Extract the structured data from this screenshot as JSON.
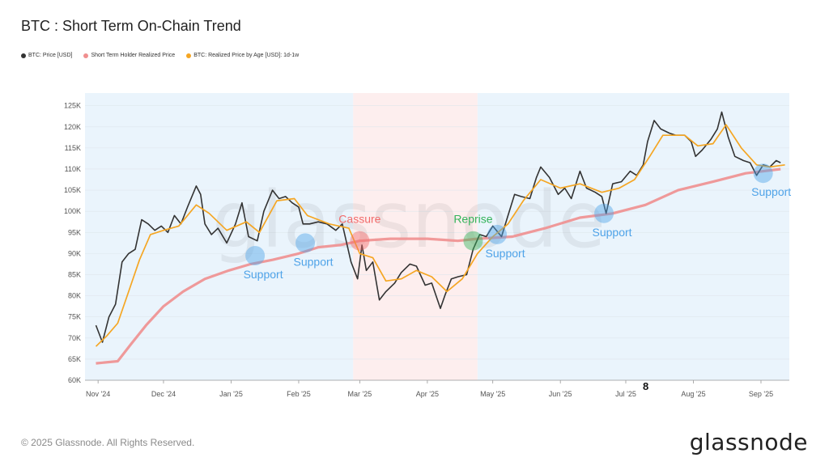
{
  "title": "BTC : Short Term On-Chain Trend",
  "legend": [
    {
      "label": "BTC: Price [USD]",
      "color": "#333333"
    },
    {
      "label": "Short Term Holder Realized Price",
      "color": "#f08f8f"
    },
    {
      "label": "BTC: Realized Price by Age [USD]: 1d-1w",
      "color": "#f5a623"
    }
  ],
  "footer": "© 2025 Glassnode. All Rights Reserved.",
  "brand": "glassnode",
  "watermark": "glassnode",
  "stray_label": "8",
  "chart_data": {
    "type": "line",
    "title": "BTC : Short Term On-Chain Trend",
    "xlim": [
      "2024-10-26",
      "2025-09-14"
    ],
    "ylim": [
      60000,
      128000
    ],
    "x_ticks": [
      {
        "date": "2024-11-01",
        "label": "Nov '24"
      },
      {
        "date": "2024-12-01",
        "label": "Dec '24"
      },
      {
        "date": "2025-01-01",
        "label": "Jan '25"
      },
      {
        "date": "2025-02-01",
        "label": "Feb '25"
      },
      {
        "date": "2025-03-01",
        "label": "Mar '25"
      },
      {
        "date": "2025-04-01",
        "label": "Apr '25"
      },
      {
        "date": "2025-05-01",
        "label": "May '25"
      },
      {
        "date": "2025-06-01",
        "label": "Jun '25"
      },
      {
        "date": "2025-07-01",
        "label": "Jul '25"
      },
      {
        "date": "2025-08-01",
        "label": "Aug '25"
      },
      {
        "date": "2025-09-01",
        "label": "Sep '25"
      }
    ],
    "y_ticks": [
      {
        "value": 60000,
        "label": "60K"
      },
      {
        "value": 65000,
        "label": "65K"
      },
      {
        "value": 70000,
        "label": "70K"
      },
      {
        "value": 75000,
        "label": "75K"
      },
      {
        "value": 80000,
        "label": "80K"
      },
      {
        "value": 85000,
        "label": "85K"
      },
      {
        "value": 90000,
        "label": "90K"
      },
      {
        "value": 95000,
        "label": "95K"
      },
      {
        "value": 100000,
        "label": "100K"
      },
      {
        "value": 105000,
        "label": "105K"
      },
      {
        "value": 110000,
        "label": "110K"
      },
      {
        "value": 115000,
        "label": "115K"
      },
      {
        "value": 120000,
        "label": "120K"
      },
      {
        "value": 125000,
        "label": "125K"
      }
    ],
    "regions": [
      {
        "start": "2024-10-26",
        "end": "2025-02-26",
        "color": "#eaf4fc"
      },
      {
        "start": "2025-02-26",
        "end": "2025-04-24",
        "color": "#fdeeee"
      },
      {
        "start": "2025-04-24",
        "end": "2025-09-14",
        "color": "#eaf4fc"
      }
    ],
    "series": [
      {
        "name": "BTC: Price [USD]",
        "color": "#333333",
        "points": [
          [
            "2024-10-31",
            73000
          ],
          [
            "2024-11-03",
            69000
          ],
          [
            "2024-11-06",
            75000
          ],
          [
            "2024-11-09",
            78000
          ],
          [
            "2024-11-12",
            88000
          ],
          [
            "2024-11-15",
            90000
          ],
          [
            "2024-11-18",
            91000
          ],
          [
            "2024-11-21",
            98000
          ],
          [
            "2024-11-24",
            97000
          ],
          [
            "2024-11-27",
            95500
          ],
          [
            "2024-11-30",
            96500
          ],
          [
            "2024-12-03",
            95000
          ],
          [
            "2024-12-06",
            99000
          ],
          [
            "2024-12-09",
            97000
          ],
          [
            "2024-12-12",
            101000
          ],
          [
            "2024-12-16",
            106000
          ],
          [
            "2024-12-18",
            104000
          ],
          [
            "2024-12-20",
            97000
          ],
          [
            "2024-12-23",
            94500
          ],
          [
            "2024-12-26",
            96000
          ],
          [
            "2024-12-30",
            92500
          ],
          [
            "2025-01-03",
            97000
          ],
          [
            "2025-01-06",
            102000
          ],
          [
            "2025-01-09",
            94000
          ],
          [
            "2025-01-13",
            93000
          ],
          [
            "2025-01-16",
            100000
          ],
          [
            "2025-01-20",
            105000
          ],
          [
            "2025-01-23",
            103000
          ],
          [
            "2025-01-26",
            103500
          ],
          [
            "2025-01-29",
            102000
          ],
          [
            "2025-02-01",
            101000
          ],
          [
            "2025-02-03",
            97000
          ],
          [
            "2025-02-06",
            97000
          ],
          [
            "2025-02-10",
            97500
          ],
          [
            "2025-02-14",
            97000
          ],
          [
            "2025-02-18",
            95500
          ],
          [
            "2025-02-21",
            97000
          ],
          [
            "2025-02-25",
            88000
          ],
          [
            "2025-02-28",
            84000
          ],
          [
            "2025-03-02",
            92000
          ],
          [
            "2025-03-04",
            86000
          ],
          [
            "2025-03-07",
            88000
          ],
          [
            "2025-03-10",
            79000
          ],
          [
            "2025-03-13",
            81000
          ],
          [
            "2025-03-17",
            83000
          ],
          [
            "2025-03-20",
            85500
          ],
          [
            "2025-03-24",
            87500
          ],
          [
            "2025-03-27",
            87000
          ],
          [
            "2025-03-31",
            82500
          ],
          [
            "2025-04-03",
            83000
          ],
          [
            "2025-04-07",
            77000
          ],
          [
            "2025-04-09",
            80000
          ],
          [
            "2025-04-12",
            84000
          ],
          [
            "2025-04-15",
            84500
          ],
          [
            "2025-04-19",
            85000
          ],
          [
            "2025-04-22",
            91000
          ],
          [
            "2025-04-25",
            94500
          ],
          [
            "2025-04-28",
            94000
          ],
          [
            "2025-05-01",
            96500
          ],
          [
            "2025-05-05",
            94000
          ],
          [
            "2025-05-08",
            99000
          ],
          [
            "2025-05-11",
            104000
          ],
          [
            "2025-05-14",
            103500
          ],
          [
            "2025-05-18",
            103000
          ],
          [
            "2025-05-21",
            108000
          ],
          [
            "2025-05-23",
            110500
          ],
          [
            "2025-05-27",
            108000
          ],
          [
            "2025-05-31",
            104000
          ],
          [
            "2025-06-03",
            105500
          ],
          [
            "2025-06-06",
            103000
          ],
          [
            "2025-06-10",
            109500
          ],
          [
            "2025-06-13",
            105500
          ],
          [
            "2025-06-17",
            104500
          ],
          [
            "2025-06-20",
            103500
          ],
          [
            "2025-06-22",
            99500
          ],
          [
            "2025-06-25",
            106500
          ],
          [
            "2025-06-29",
            107000
          ],
          [
            "2025-07-03",
            109500
          ],
          [
            "2025-07-06",
            108500
          ],
          [
            "2025-07-09",
            111000
          ],
          [
            "2025-07-11",
            116500
          ],
          [
            "2025-07-14",
            121500
          ],
          [
            "2025-07-17",
            119500
          ],
          [
            "2025-07-21",
            118500
          ],
          [
            "2025-07-24",
            118000
          ],
          [
            "2025-07-28",
            118000
          ],
          [
            "2025-07-31",
            116500
          ],
          [
            "2025-08-02",
            113000
          ],
          [
            "2025-08-05",
            114500
          ],
          [
            "2025-08-09",
            117000
          ],
          [
            "2025-08-12",
            119500
          ],
          [
            "2025-08-14",
            123500
          ],
          [
            "2025-08-17",
            117500
          ],
          [
            "2025-08-20",
            113000
          ],
          [
            "2025-08-24",
            112000
          ],
          [
            "2025-08-27",
            111500
          ],
          [
            "2025-08-30",
            108500
          ],
          [
            "2025-09-02",
            111000
          ],
          [
            "2025-09-05",
            110500
          ],
          [
            "2025-09-08",
            112000
          ],
          [
            "2025-09-10",
            111500
          ]
        ]
      },
      {
        "name": "Short Term Holder Realized Price",
        "color": "#f08f8f",
        "points": [
          [
            "2024-10-31",
            64000
          ],
          [
            "2024-11-10",
            64500
          ],
          [
            "2024-11-16",
            68500
          ],
          [
            "2024-11-23",
            73000
          ],
          [
            "2024-12-01",
            77500
          ],
          [
            "2024-12-10",
            81000
          ],
          [
            "2024-12-20",
            84000
          ],
          [
            "2024-12-31",
            86000
          ],
          [
            "2025-01-10",
            87500
          ],
          [
            "2025-01-20",
            88500
          ],
          [
            "2025-02-01",
            90000
          ],
          [
            "2025-02-10",
            91500
          ],
          [
            "2025-02-20",
            92000
          ],
          [
            "2025-03-01",
            93000
          ],
          [
            "2025-03-15",
            93500
          ],
          [
            "2025-04-01",
            93500
          ],
          [
            "2025-04-15",
            93000
          ],
          [
            "2025-04-24",
            93500
          ],
          [
            "2025-05-10",
            94000
          ],
          [
            "2025-05-25",
            96000
          ],
          [
            "2025-06-10",
            98500
          ],
          [
            "2025-06-25",
            99500
          ],
          [
            "2025-07-10",
            101500
          ],
          [
            "2025-07-25",
            105000
          ],
          [
            "2025-08-10",
            107000
          ],
          [
            "2025-08-25",
            109000
          ],
          [
            "2025-09-10",
            110000
          ]
        ]
      },
      {
        "name": "BTC: Realized Price by Age [USD]: 1d-1w",
        "color": "#f5a623",
        "points": [
          [
            "2024-10-31",
            68000
          ],
          [
            "2024-11-05",
            70500
          ],
          [
            "2024-11-10",
            73500
          ],
          [
            "2024-11-15",
            81000
          ],
          [
            "2024-11-20",
            88500
          ],
          [
            "2024-11-25",
            94500
          ],
          [
            "2024-12-01",
            95500
          ],
          [
            "2024-12-08",
            96500
          ],
          [
            "2024-12-16",
            101500
          ],
          [
            "2024-12-22",
            99500
          ],
          [
            "2024-12-30",
            95500
          ],
          [
            "2025-01-08",
            97500
          ],
          [
            "2025-01-14",
            95000
          ],
          [
            "2025-01-22",
            102500
          ],
          [
            "2025-01-30",
            103000
          ],
          [
            "2025-02-05",
            99000
          ],
          [
            "2025-02-15",
            97000
          ],
          [
            "2025-02-24",
            96000
          ],
          [
            "2025-03-01",
            90000
          ],
          [
            "2025-03-07",
            89000
          ],
          [
            "2025-03-13",
            83500
          ],
          [
            "2025-03-20",
            84000
          ],
          [
            "2025-03-27",
            86000
          ],
          [
            "2025-04-03",
            84500
          ],
          [
            "2025-04-10",
            81000
          ],
          [
            "2025-04-17",
            84000
          ],
          [
            "2025-04-24",
            90000
          ],
          [
            "2025-05-01",
            94000
          ],
          [
            "2025-05-08",
            97000
          ],
          [
            "2025-05-15",
            102500
          ],
          [
            "2025-05-23",
            107500
          ],
          [
            "2025-06-01",
            105500
          ],
          [
            "2025-06-10",
            106500
          ],
          [
            "2025-06-20",
            104500
          ],
          [
            "2025-06-28",
            105500
          ],
          [
            "2025-07-05",
            107500
          ],
          [
            "2025-07-12",
            113000
          ],
          [
            "2025-07-18",
            118000
          ],
          [
            "2025-07-28",
            118000
          ],
          [
            "2025-08-03",
            115500
          ],
          [
            "2025-08-10",
            116000
          ],
          [
            "2025-08-16",
            120500
          ],
          [
            "2025-08-23",
            115000
          ],
          [
            "2025-08-30",
            111000
          ],
          [
            "2025-09-05",
            110500
          ],
          [
            "2025-09-12",
            111000
          ]
        ]
      }
    ],
    "annotations": [
      {
        "text": "Support",
        "date": "2025-01-12",
        "value": 89500,
        "color": "#4fa3e8"
      },
      {
        "text": "Support",
        "date": "2025-02-04",
        "value": 92500,
        "color": "#4fa3e8"
      },
      {
        "text": "Cassure",
        "date": "2025-03-01",
        "value": 93000,
        "color": "#f26b6b"
      },
      {
        "text": "Reprise",
        "date": "2025-04-22",
        "value": 93000,
        "color": "#34b35a"
      },
      {
        "text": "Support",
        "date": "2025-05-03",
        "value": 94500,
        "color": "#4fa3e8"
      },
      {
        "text": "Support",
        "date": "2025-06-21",
        "value": 99500,
        "color": "#4fa3e8"
      },
      {
        "text": "Support",
        "date": "2025-09-02",
        "value": 109000,
        "color": "#4fa3e8"
      }
    ]
  }
}
